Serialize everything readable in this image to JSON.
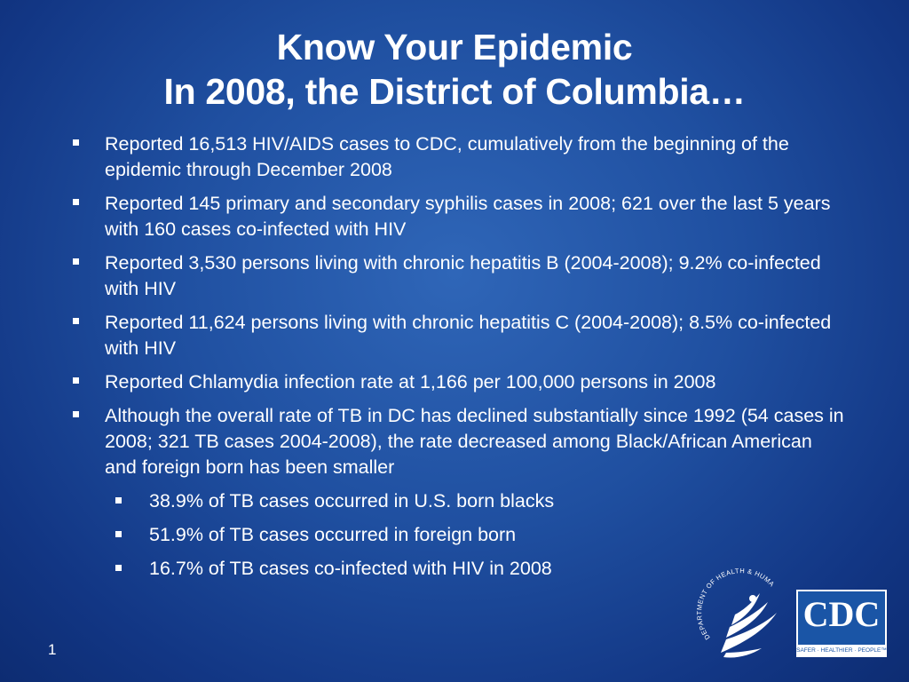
{
  "title": {
    "line1": "Know Your Epidemic",
    "line2": "In 2008, the District of Columbia…"
  },
  "bullets": [
    {
      "text": "Reported 16,513 HIV/AIDS cases to CDC, cumulatively from the beginning of the epidemic through December 2008"
    },
    {
      "text": "Reported 145 primary and secondary syphilis cases in 2008; 621 over the last 5 years with 160 cases co-infected with HIV"
    },
    {
      "text": "Reported 3,530 persons living with chronic hepatitis B (2004-2008); 9.2% co-infected with HIV"
    },
    {
      "text": "Reported 11,624 persons living with chronic hepatitis C (2004-2008); 8.5% co-infected with HIV"
    },
    {
      "text": "Reported Chlamydia infection rate at 1,166 per 100,000 persons in 2008"
    },
    {
      "text": "Although the overall rate of TB in DC has declined substantially since 1992 (54 cases in 2008; 321 TB cases 2004-2008), the rate decreased among Black/African American and foreign born has been smaller",
      "sub": [
        "38.9% of TB cases occurred in U.S. born blacks",
        "51.9% of TB cases occurred in foreign born",
        "16.7% of TB cases co-infected with HIV in 2008"
      ]
    }
  ],
  "footer": {
    "page_number": "1",
    "hhs_seal": "DEPARTMENT OF HEALTH & HUMAN SERVICES · USA",
    "cdc_logo": "CDC",
    "cdc_tagline": "SAFER · HEALTHIER · PEOPLE™"
  }
}
